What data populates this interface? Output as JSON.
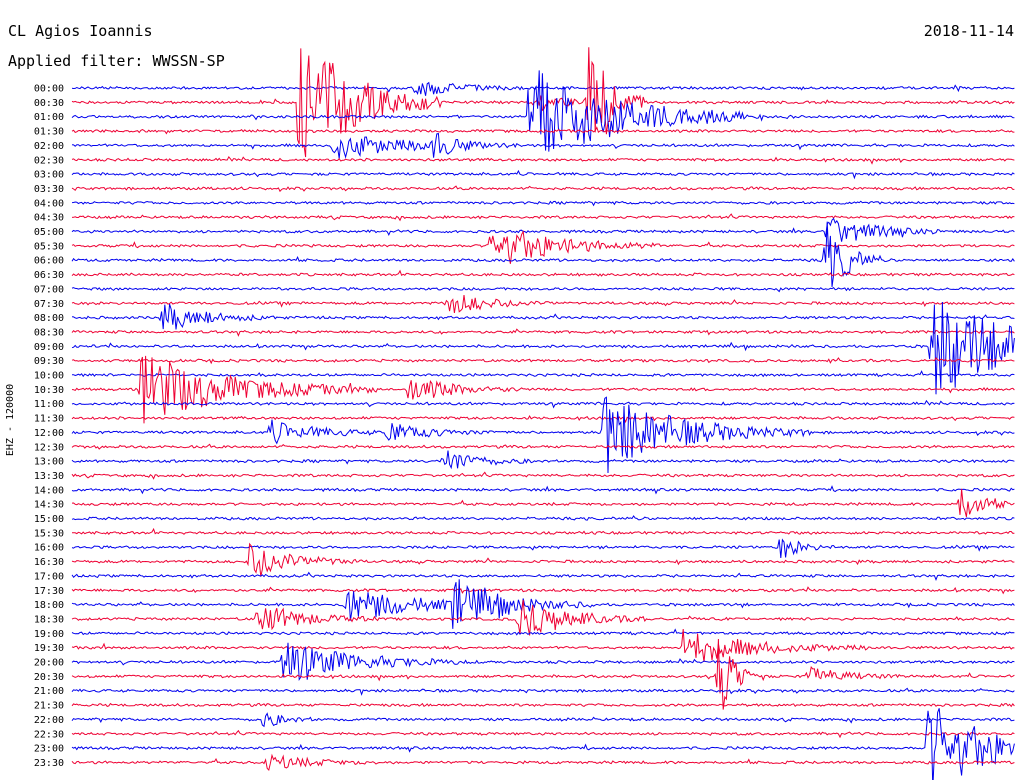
{
  "header": {
    "station": "CL Agios Ioannis",
    "filter": "Applied filter: WWSSN-SP",
    "date": "2018-11-14"
  },
  "colors": {
    "blue": "#0000ee",
    "red": "#ee0033"
  },
  "chart_data": {
    "type": "line",
    "title": "CL Agios Ioannis",
    "subtitle": "Applied filter: WWSSN-SP",
    "ylabel": "EHZ - 120000",
    "tick_labels": [
      "00:00",
      "00:30",
      "01:00",
      "01:30",
      "02:00",
      "02:30",
      "03:00",
      "03:30",
      "04:00",
      "04:30",
      "05:00",
      "05:30",
      "06:00",
      "06:30",
      "07:00",
      "07:30",
      "08:00",
      "08:30",
      "09:00",
      "09:30",
      "10:00",
      "10:30",
      "11:00",
      "11:30",
      "12:00",
      "12:30",
      "13:00",
      "13:30",
      "14:00",
      "14:30",
      "15:00",
      "15:30",
      "16:00",
      "16:30",
      "17:00",
      "17:30",
      "18:00",
      "18:30",
      "19:00",
      "19:30",
      "20:00",
      "20:30",
      "21:00",
      "21:30",
      "22:00",
      "22:30",
      "23:00",
      "23:30"
    ],
    "series_colors": [
      "blue",
      "red"
    ],
    "events": [
      {
        "trace": 1,
        "minute": 7.2,
        "amp": 80,
        "dur": 1.5
      },
      {
        "trace": 0,
        "minute": 10.8,
        "amp": 10,
        "dur": 1.2
      },
      {
        "trace": 1,
        "minute": 14.7,
        "amp": 9,
        "dur": 0.8
      },
      {
        "trace": 2,
        "minute": 14.5,
        "amp": 55,
        "dur": 2.5
      },
      {
        "trace": 1,
        "minute": 16.4,
        "amp": 80,
        "dur": 0.6
      },
      {
        "trace": 4,
        "minute": 8.3,
        "amp": 14,
        "dur": 2.0
      },
      {
        "trace": 4,
        "minute": 11.5,
        "amp": 12,
        "dur": 0.6
      },
      {
        "trace": 10,
        "minute": 24.0,
        "amp": 18,
        "dur": 1.2
      },
      {
        "trace": 11,
        "minute": 13.3,
        "amp": 24,
        "dur": 1.8
      },
      {
        "trace": 12,
        "minute": 23.9,
        "amp": 45,
        "dur": 0.6
      },
      {
        "trace": 16,
        "minute": 2.9,
        "amp": 15,
        "dur": 1.2
      },
      {
        "trace": 15,
        "minute": 11.9,
        "amp": 12,
        "dur": 1.2
      },
      {
        "trace": 18,
        "minute": 27.3,
        "amp": 55,
        "dur": 2.5
      },
      {
        "trace": 21,
        "minute": 2.2,
        "amp": 38,
        "dur": 2.5
      },
      {
        "trace": 21,
        "minute": 10.7,
        "amp": 14,
        "dur": 1.2
      },
      {
        "trace": 24,
        "minute": 16.9,
        "amp": 40,
        "dur": 2.2
      },
      {
        "trace": 24,
        "minute": 6.3,
        "amp": 12,
        "dur": 1.3
      },
      {
        "trace": 24,
        "minute": 10.0,
        "amp": 10,
        "dur": 1.2
      },
      {
        "trace": 26,
        "minute": 11.8,
        "amp": 12,
        "dur": 1.0
      },
      {
        "trace": 29,
        "minute": 28.2,
        "amp": 22,
        "dur": 0.6
      },
      {
        "trace": 33,
        "minute": 5.6,
        "amp": 20,
        "dur": 1.2
      },
      {
        "trace": 32,
        "minute": 22.5,
        "amp": 12,
        "dur": 0.6
      },
      {
        "trace": 36,
        "minute": 8.7,
        "amp": 18,
        "dur": 2.0
      },
      {
        "trace": 36,
        "minute": 12.1,
        "amp": 25,
        "dur": 1.5
      },
      {
        "trace": 37,
        "minute": 5.9,
        "amp": 16,
        "dur": 1.3
      },
      {
        "trace": 37,
        "minute": 14.2,
        "amp": 22,
        "dur": 1.4
      },
      {
        "trace": 39,
        "minute": 19.4,
        "amp": 18,
        "dur": 2.0
      },
      {
        "trace": 40,
        "minute": 6.7,
        "amp": 22,
        "dur": 2.0
      },
      {
        "trace": 41,
        "minute": 20.5,
        "amp": 50,
        "dur": 0.5
      },
      {
        "trace": 41,
        "minute": 23.4,
        "amp": 10,
        "dur": 1.0
      },
      {
        "trace": 44,
        "minute": 6.0,
        "amp": 10,
        "dur": 0.6
      },
      {
        "trace": 46,
        "minute": 27.2,
        "amp": 48,
        "dur": 1.8
      },
      {
        "trace": 47,
        "minute": 6.2,
        "amp": 8,
        "dur": 1.2
      }
    ]
  }
}
